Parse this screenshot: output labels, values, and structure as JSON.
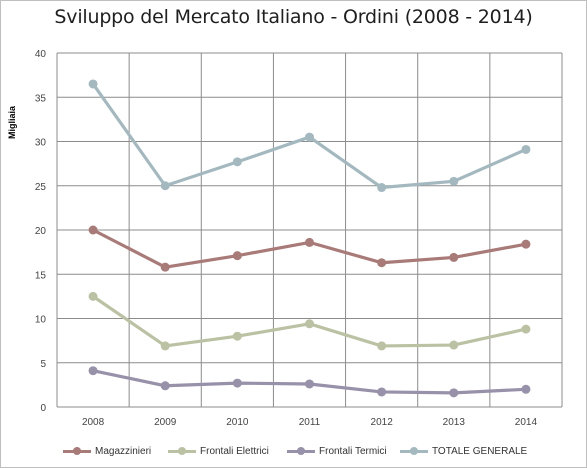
{
  "chart_data": {
    "type": "line",
    "title": "Sviluppo del Mercato Italiano - Ordini (2008 - 2014)",
    "ylabel": "Migliaia",
    "xlabel": "",
    "categories": [
      "2008",
      "2009",
      "2010",
      "2011",
      "2012",
      "2013",
      "2014"
    ],
    "ylim": [
      0,
      40
    ],
    "yticks": [
      0,
      5,
      10,
      15,
      20,
      25,
      30,
      35,
      40
    ],
    "grid": true,
    "legend_position": "bottom",
    "series": [
      {
        "name": "Magazzinieri",
        "color": "#a87a78",
        "values": [
          20.0,
          15.8,
          17.1,
          18.6,
          16.3,
          16.9,
          18.4
        ]
      },
      {
        "name": "Frontali Elettrici",
        "color": "#bbc2a3",
        "values": [
          12.5,
          6.9,
          8.0,
          9.4,
          6.9,
          7.0,
          8.8
        ]
      },
      {
        "name": "Frontali Termici",
        "color": "#9791a9",
        "values": [
          4.1,
          2.4,
          2.7,
          2.6,
          1.7,
          1.6,
          2.0
        ]
      },
      {
        "name": "TOTALE GENERALE",
        "color": "#a3b9bf",
        "values": [
          36.5,
          25.0,
          27.7,
          30.5,
          24.8,
          25.5,
          29.1
        ]
      }
    ]
  }
}
